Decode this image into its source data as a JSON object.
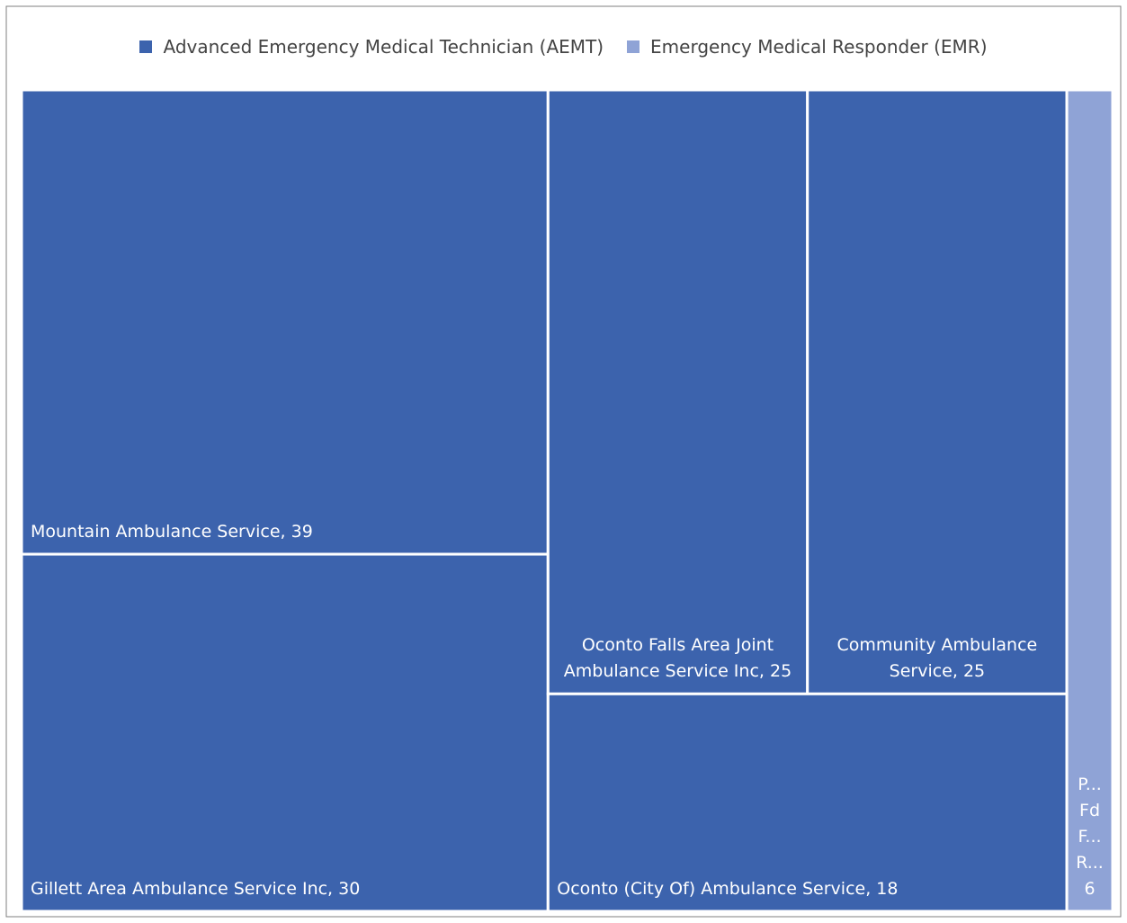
{
  "chart_data": {
    "type": "treemap",
    "series": [
      {
        "name": "Advanced Emergency Medical Technician (AEMT)",
        "color": "#3c63ad",
        "values": [
          39,
          30,
          25,
          25,
          18
        ],
        "value_labels": [
          "Mountain Ambulance Service, 39",
          "Gillett Area Ambulance Service Inc, 30",
          "Oconto Falls Area Joint Ambulance Service Inc, 25",
          "Community Ambulance Service, 25",
          "Oconto (City Of) Ambulance Service, 18"
        ]
      },
      {
        "name": "Emergency Medical Responder (EMR)",
        "color": "#8fa3d6",
        "values": [
          6
        ],
        "value_labels": [
          "P... Fd F... R... 6"
        ]
      }
    ],
    "legend": "top"
  }
}
